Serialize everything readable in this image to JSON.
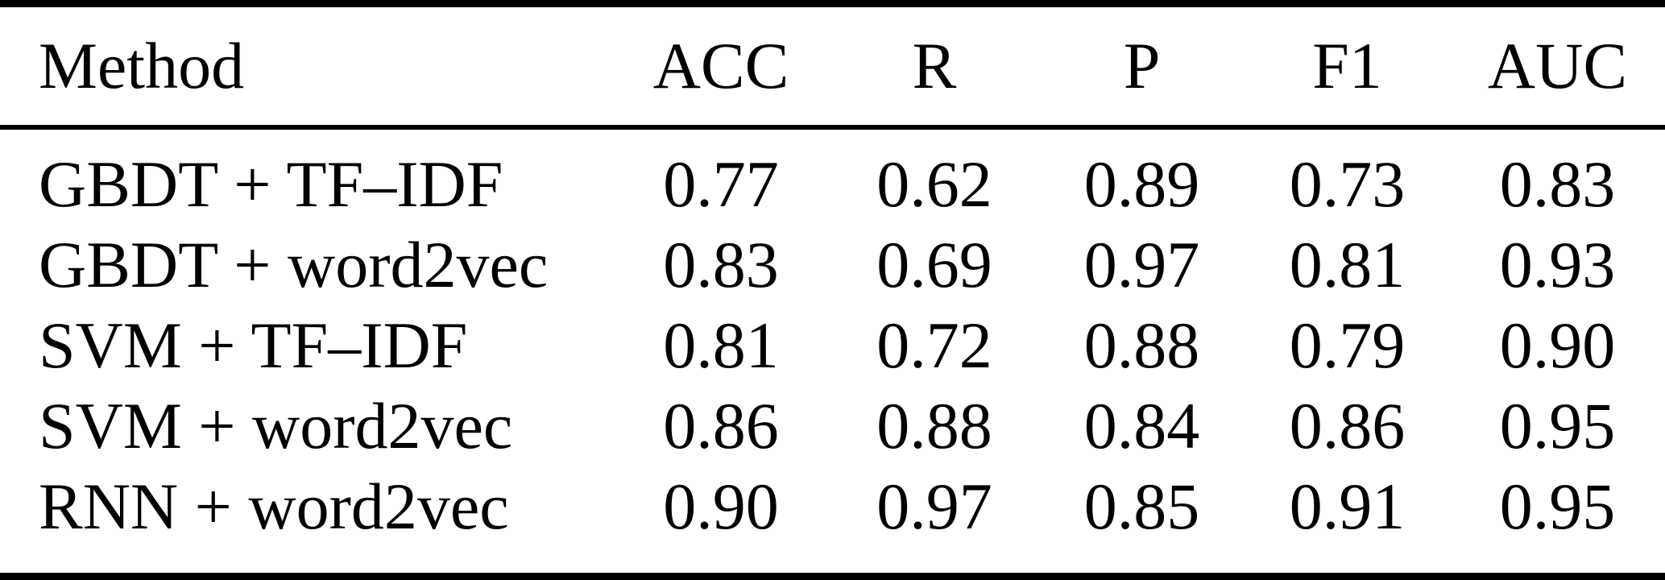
{
  "table": {
    "columns": [
      "Method",
      "ACC",
      "R",
      "P",
      "F1",
      "AUC"
    ],
    "rows": [
      {
        "method": "GBDT + TF–IDF",
        "values": [
          "0.77",
          "0.62",
          "0.89",
          "0.73",
          "0.83"
        ]
      },
      {
        "method": "GBDT + word2vec",
        "values": [
          "0.83",
          "0.69",
          "0.97",
          "0.81",
          "0.93"
        ]
      },
      {
        "method": "SVM + TF–IDF",
        "values": [
          "0.81",
          "0.72",
          "0.88",
          "0.79",
          "0.90"
        ]
      },
      {
        "method": "SVM + word2vec",
        "values": [
          "0.86",
          "0.88",
          "0.84",
          "0.86",
          "0.95"
        ]
      },
      {
        "method": "RNN + word2vec",
        "values": [
          "0.90",
          "0.97",
          "0.85",
          "0.91",
          "0.95"
        ]
      }
    ]
  },
  "chart_data": {
    "type": "table",
    "columns": [
      "Method",
      "ACC",
      "R",
      "P",
      "F1",
      "AUC"
    ],
    "rows": [
      [
        "GBDT + TF–IDF",
        0.77,
        0.62,
        0.89,
        0.73,
        0.83
      ],
      [
        "GBDT + word2vec",
        0.83,
        0.69,
        0.97,
        0.81,
        0.93
      ],
      [
        "SVM + TF–IDF",
        0.81,
        0.72,
        0.88,
        0.79,
        0.9
      ],
      [
        "SVM + word2vec",
        0.86,
        0.88,
        0.84,
        0.86,
        0.95
      ],
      [
        "RNN + word2vec",
        0.9,
        0.97,
        0.85,
        0.91,
        0.95
      ]
    ]
  },
  "colors": {
    "text": "#000000",
    "background": "#ffffff",
    "rule": "#000000"
  }
}
